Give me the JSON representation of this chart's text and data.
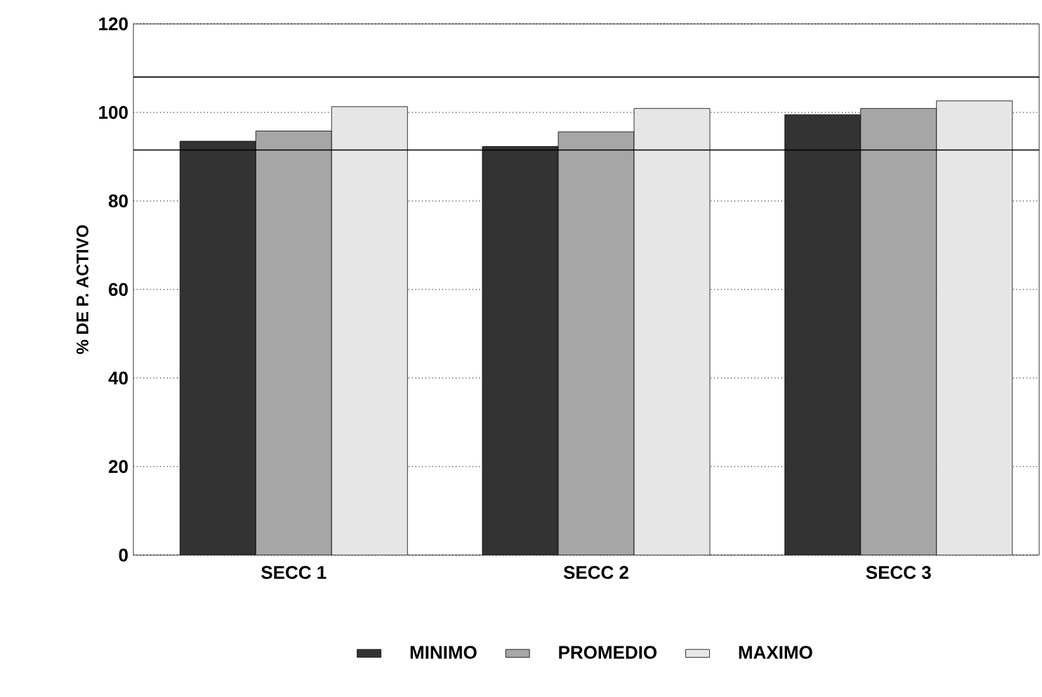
{
  "chart_data": {
    "type": "bar",
    "ylabel": "% DE P. ACTIVO",
    "categories": [
      "SECC 1",
      "SECC 2",
      "SECC 3"
    ],
    "series": [
      {
        "name": "MINIMO",
        "color": "#333333",
        "values": [
          93.5,
          92.3,
          99.5
        ]
      },
      {
        "name": "PROMEDIO",
        "color": "#a6a6a6",
        "values": [
          95.8,
          95.6,
          100.9
        ]
      },
      {
        "name": "MAXIMO",
        "color": "#e6e6e6",
        "values": [
          101.3,
          100.9,
          102.6
        ]
      }
    ],
    "ylim": [
      0,
      120
    ],
    "yticks": [
      0,
      20,
      40,
      60,
      80,
      100,
      120
    ],
    "ref_lines": [
      {
        "axis": "y",
        "value": 108
      },
      {
        "axis": "y",
        "value": 91.5
      }
    ],
    "grid": "y",
    "legend": "bottom"
  }
}
